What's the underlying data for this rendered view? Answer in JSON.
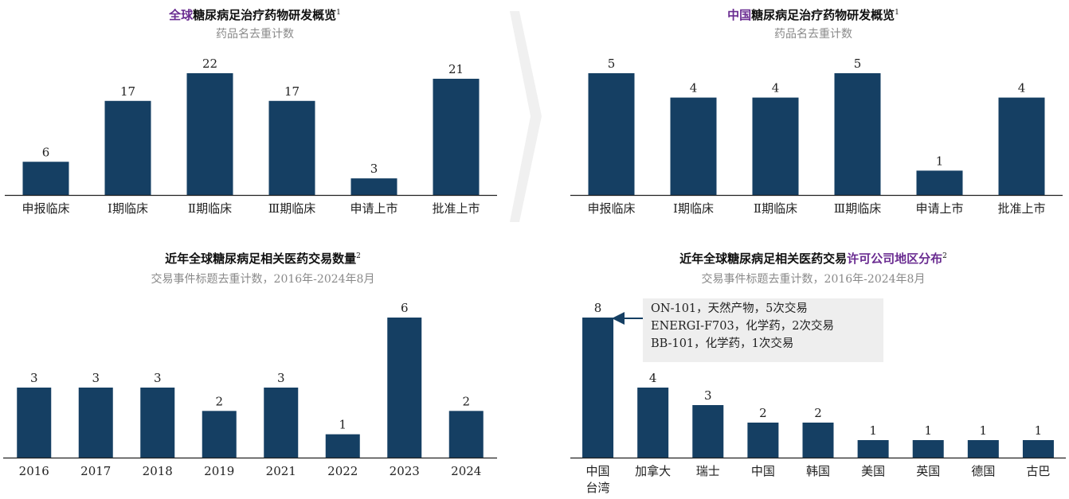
{
  "panels": [
    {
      "title_highlight": "全球",
      "title_rest": "糖尿病足治疗药物研发概览",
      "title_note": "1",
      "subtitle": "药品名去重计数"
    },
    {
      "title_highlight": "中国",
      "title_rest": "糖尿病足治疗药物研发概览",
      "title_note": "1",
      "subtitle": "药品名去重计数"
    },
    {
      "title_prefix": "近年全球糖尿病足相关医药交易数量",
      "title_note": "2",
      "subtitle": "交易事件标题去重计数，2016年-2024年8月"
    },
    {
      "title_prefix": "近年全球糖尿病足相关医药交易",
      "title_highlight": "许可公司地区分布",
      "title_note": "2",
      "subtitle": "交易事件标题去重计数，2016年-2024年8月"
    }
  ],
  "callout": {
    "lines": [
      "ON-101，天然产物，5次交易",
      "ENERGI-F703，化学药，2次交易",
      "BB-101，化学药，1次交易"
    ]
  },
  "colors": {
    "bar": "#153f63",
    "axis": "#222222",
    "highlight": "#6a2c91",
    "subtitle": "#8a8a8a"
  },
  "chart_data": [
    {
      "type": "bar",
      "categories": [
        "申报临床",
        "Ⅰ期临床",
        "Ⅱ期临床",
        "Ⅲ期临床",
        "申请上市",
        "批准上市"
      ],
      "values": [
        6,
        17,
        22,
        17,
        3,
        21
      ],
      "title": "全球糖尿病足治疗药物研发概览",
      "subtitle": "药品名去重计数"
    },
    {
      "type": "bar",
      "categories": [
        "申报临床",
        "Ⅰ期临床",
        "Ⅱ期临床",
        "Ⅲ期临床",
        "申请上市",
        "批准上市"
      ],
      "values": [
        5,
        4,
        4,
        5,
        1,
        4
      ],
      "title": "中国糖尿病足治疗药物研发概览",
      "subtitle": "药品名去重计数"
    },
    {
      "type": "bar",
      "categories": [
        "2016",
        "2017",
        "2018",
        "2019",
        "2021",
        "2022",
        "2023",
        "2024"
      ],
      "values": [
        3,
        3,
        3,
        2,
        3,
        1,
        6,
        2
      ],
      "title": "近年全球糖尿病足相关医药交易数量",
      "subtitle": "交易事件标题去重计数，2016年-2024年8月"
    },
    {
      "type": "bar",
      "categories": [
        "中国台湾",
        "加拿大",
        "瑞士",
        "中国",
        "韩国",
        "美国",
        "英国",
        "德国",
        "古巴"
      ],
      "category_lines": [
        [
          "中国",
          "台湾"
        ],
        [
          "加拿大"
        ],
        [
          "瑞士"
        ],
        [
          "中国"
        ],
        [
          "韩国"
        ],
        [
          "美国"
        ],
        [
          "英国"
        ],
        [
          "德国"
        ],
        [
          "古巴"
        ]
      ],
      "values": [
        8,
        4,
        3,
        2,
        2,
        1,
        1,
        1,
        1
      ],
      "title": "近年全球糖尿病足相关医药交易许可公司地区分布",
      "subtitle": "交易事件标题去重计数，2016年-2024年8月"
    }
  ]
}
